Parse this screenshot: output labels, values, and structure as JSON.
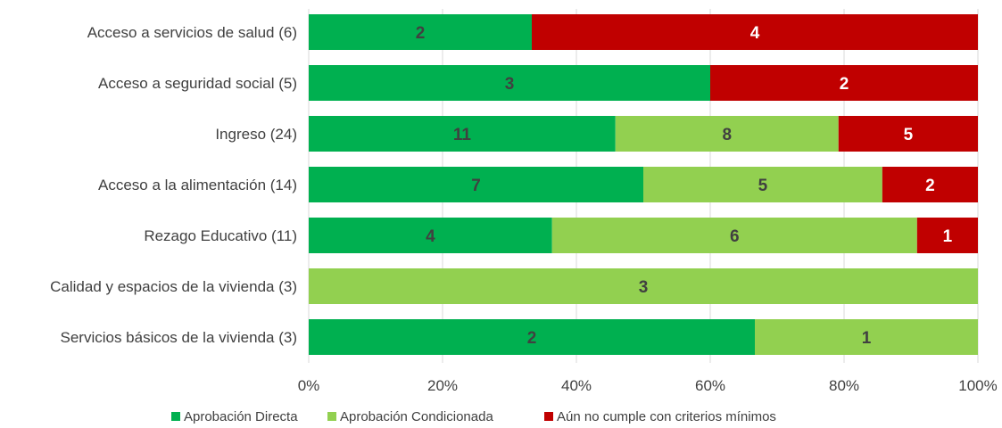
{
  "chart_data": {
    "type": "bar",
    "orientation": "horizontal",
    "stacked": "percent",
    "categories": [
      "Acceso a servicios de salud (6)",
      "Acceso a seguridad social (5)",
      "Ingreso (24)",
      "Acceso a la alimentación (14)",
      "Rezago Educativo (11)",
      "Calidad y espacios de la vivienda (3)",
      "Servicios básicos de la vivienda (3)"
    ],
    "series": [
      {
        "name": "Aprobación Directa",
        "color": "#00b050",
        "label_color": "#404040",
        "values": [
          2,
          3,
          11,
          7,
          4,
          0,
          2
        ]
      },
      {
        "name": "Aprobación Condicionada",
        "color": "#92d050",
        "label_color": "#404040",
        "values": [
          0,
          0,
          8,
          5,
          6,
          3,
          1
        ]
      },
      {
        "name": "Aún no cumple con criterios mínimos",
        "color": "#c00000",
        "label_color": "#ffffff",
        "values": [
          4,
          2,
          5,
          2,
          1,
          0,
          0
        ]
      }
    ],
    "x_ticks": [
      "0%",
      "20%",
      "40%",
      "60%",
      "80%",
      "100%"
    ],
    "xlim": [
      0,
      100
    ],
    "grid": true,
    "legend_position": "bottom"
  }
}
